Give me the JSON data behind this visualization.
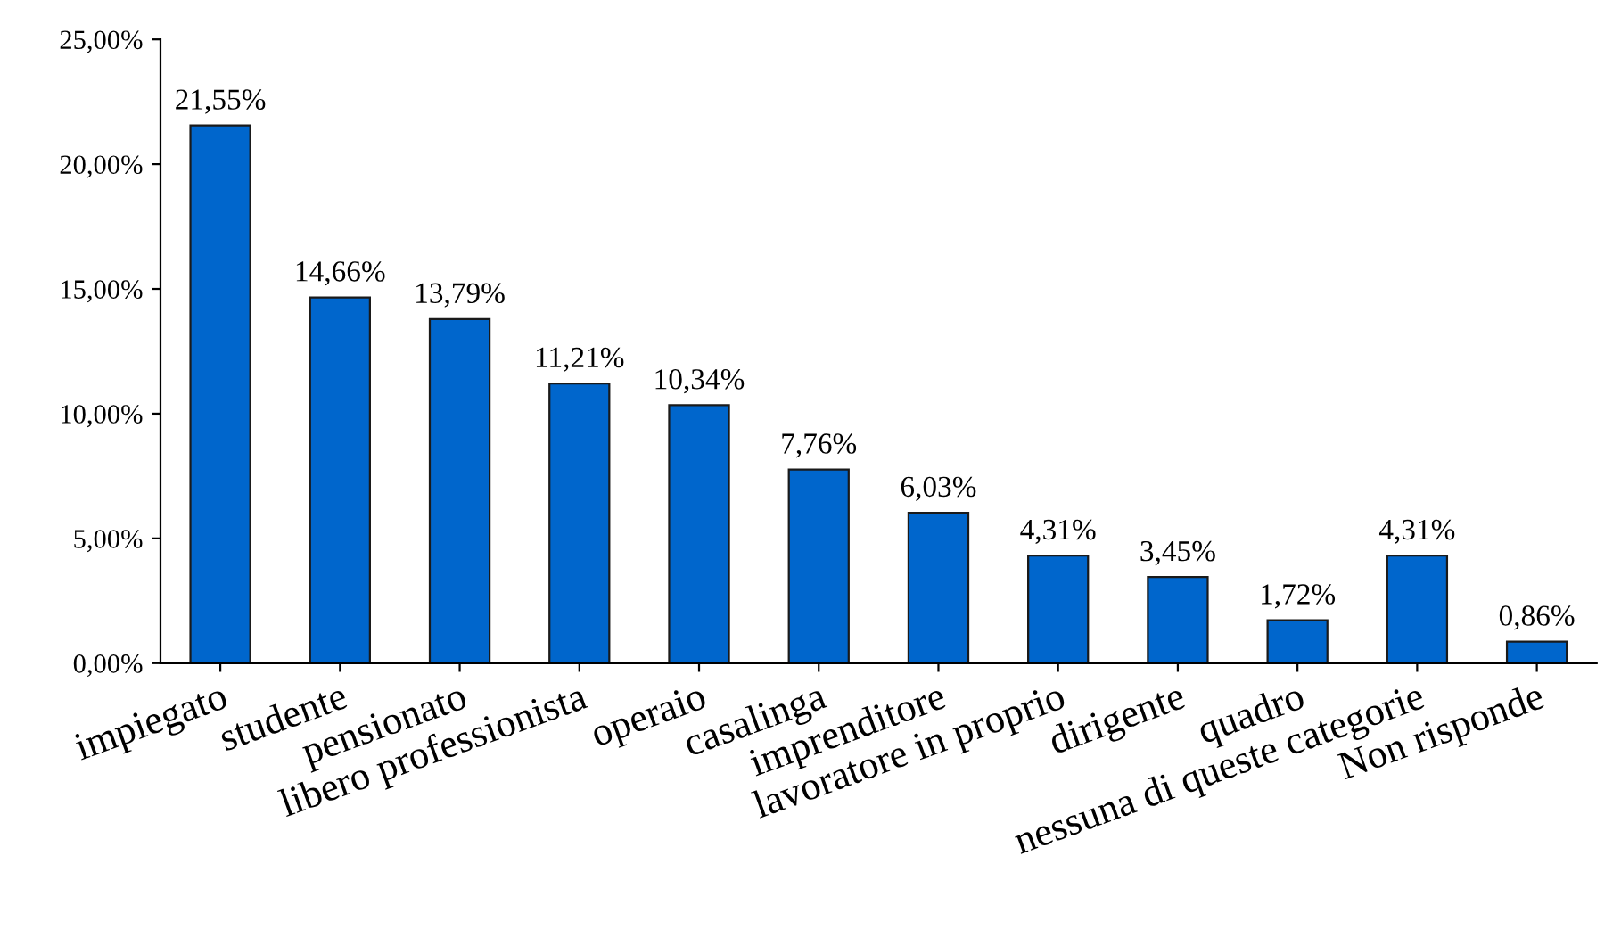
{
  "chart_data": {
    "type": "bar",
    "categories": [
      "impiegato",
      "studente",
      "pensionato",
      "libero professionista",
      "operaio",
      "casalinga",
      "imprenditore",
      "lavoratore in proprio",
      "dirigente",
      "quadro",
      "nessuna di queste categorie",
      "Non risponde"
    ],
    "values": [
      21.55,
      14.66,
      13.79,
      11.21,
      10.34,
      7.76,
      6.03,
      4.31,
      3.45,
      1.72,
      4.31,
      0.86
    ],
    "value_labels": [
      "21,55%",
      "14,66%",
      "13,79%",
      "11,21%",
      "10,34%",
      "7,76%",
      "6,03%",
      "4,31%",
      "3,45%",
      "1,72%",
      "4,31%",
      "0,86%"
    ],
    "color": "#0066cc",
    "ylim": [
      0,
      25
    ],
    "yticks": [
      {
        "value": 0,
        "label": "0,00%"
      },
      {
        "value": 5,
        "label": "5,00%"
      },
      {
        "value": 10,
        "label": "10,00%"
      },
      {
        "value": 15,
        "label": "15,00%"
      },
      {
        "value": 20,
        "label": "20,00%"
      },
      {
        "value": 25,
        "label": "25,00%"
      }
    ],
    "grid": false,
    "legend": false
  }
}
